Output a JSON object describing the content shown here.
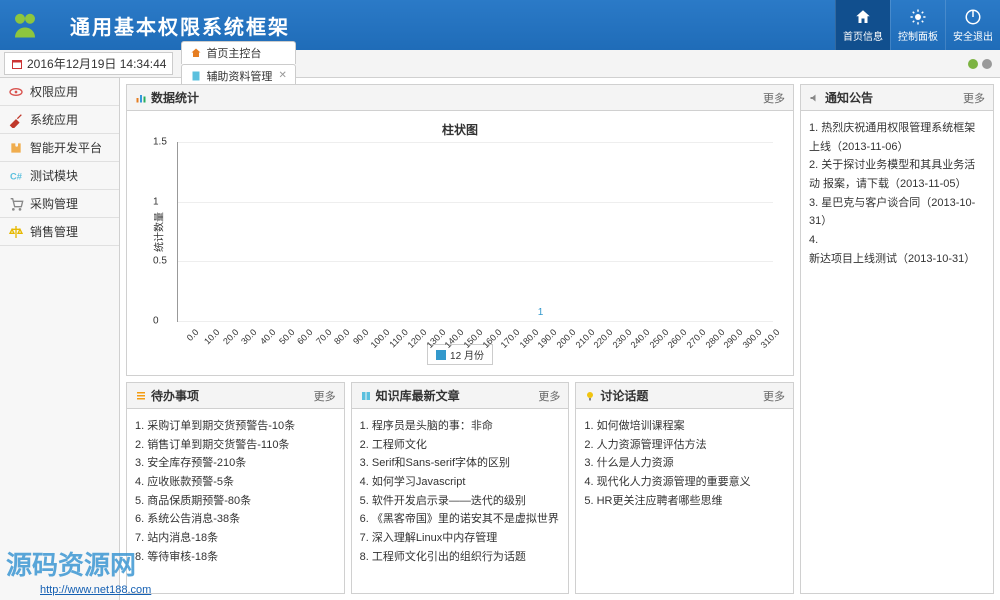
{
  "header": {
    "title": "通用基本权限系统框架",
    "buttons": [
      {
        "name": "home",
        "label": "首页信息",
        "active": true
      },
      {
        "name": "control",
        "label": "控制面板",
        "active": false
      },
      {
        "name": "logout",
        "label": "安全退出",
        "active": false
      }
    ]
  },
  "datetime": "2016年12月19日 14:34:44",
  "tabs": [
    {
      "icon": "home",
      "label": "首页主控台",
      "closable": false
    },
    {
      "icon": "doc",
      "label": "辅助资料管理",
      "closable": true
    }
  ],
  "sidebar": [
    {
      "icon": "eye",
      "label": "权限应用",
      "color": "#d9534f"
    },
    {
      "icon": "tool",
      "label": "系统应用",
      "color": "#c0392b"
    },
    {
      "icon": "puzzle",
      "label": "智能开发平台",
      "color": "#f0ad4e"
    },
    {
      "icon": "code",
      "label": "测试模块",
      "color": "#5bc0de"
    },
    {
      "icon": "cart",
      "label": "采购管理",
      "color": "#888888"
    },
    {
      "icon": "scale",
      "label": "销售管理",
      "color": "#e6b800"
    }
  ],
  "statsPanel": {
    "title": "数据统计",
    "more": "更多"
  },
  "chart": {
    "type": "bar",
    "title": "柱状图",
    "ylabel": "统计数量",
    "ylim": [
      0,
      1.5
    ],
    "ytick_step": 0.5,
    "categories": [
      0,
      10,
      20,
      30,
      40,
      50,
      60,
      70,
      80,
      90,
      100,
      110,
      120,
      130,
      140,
      150,
      160,
      170,
      180,
      190,
      200,
      210,
      220,
      230,
      240,
      250,
      260,
      270,
      280,
      290,
      300,
      310
    ],
    "values": [
      0,
      0,
      0,
      0,
      0,
      0,
      0,
      0,
      0,
      0,
      0,
      0,
      0,
      0,
      0,
      0,
      0,
      0,
      0,
      1,
      0,
      0,
      0,
      0,
      0,
      0,
      0,
      0,
      0,
      0,
      0,
      0
    ],
    "bar_color": "#3399cc",
    "grid_color": "#eeeeee",
    "axis_color": "#999999",
    "background_color": "#ffffff",
    "legend_label": "12 月份"
  },
  "notices": {
    "title": "通知公告",
    "more": "更多",
    "items": [
      "热烈庆祝通用权限管理系统框架上线（2013-11-06）",
      "关于探讨业务模型和其具业务活动 报案，请下载（2013-11-05）",
      "星巴克与客户谈合同（2013-10-31）",
      "新达项目上线测试（2013-10-31）"
    ]
  },
  "todo": {
    "title": "待办事项",
    "more": "更多",
    "items": [
      "采购订单到期交货预警告-10条",
      "销售订单到期交货警告-110条",
      "安全库存预警-210条",
      "应收账款预警-5条",
      "商品保质期预警-80条",
      "系统公告消息-38条",
      "站内消息-18条",
      "等待审核-18条"
    ]
  },
  "knowledge": {
    "title": "知识库最新文章",
    "more": "更多",
    "items": [
      "程序员是头脑的事：非命",
      "工程师文化",
      "Serif和Sans-serif字体的区别",
      "如何学习Javascript",
      "软件开发启示录——迭代的级别",
      "《黑客帝国》里的诺安其不是虚拟世界",
      "深入理解Linux中内存管理",
      "工程师文化引出的组织行为话题"
    ]
  },
  "discuss": {
    "title": "讨论话题",
    "more": "更多",
    "items": [
      "如何做培训课程案",
      "人力资源管理评估方法",
      "什么是人力资源",
      "现代化人力资源管理的重要意义",
      "HR更关注应聘者哪些思维"
    ]
  },
  "watermark": {
    "text": "源码资源网",
    "url": "http://www.net188.com"
  }
}
